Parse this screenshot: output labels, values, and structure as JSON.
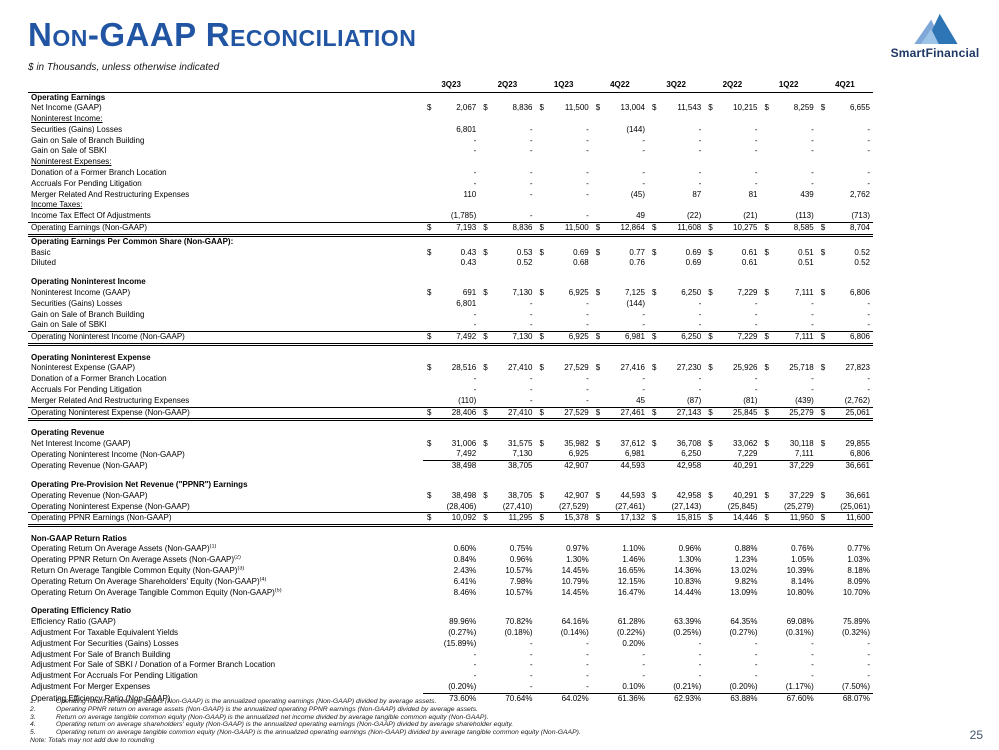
{
  "header": {
    "title": "Non-GAAP Reconciliation",
    "subtitle": "$ in Thousands, unless otherwise indicated",
    "logo_text": "SmartFinancial",
    "title_color": "#2155A3"
  },
  "table": {
    "columns": [
      "3Q23",
      "2Q23",
      "1Q23",
      "4Q22",
      "3Q22",
      "2Q22",
      "1Q22",
      "4Q21"
    ],
    "rows": [
      {
        "style": "section",
        "label": "Operating Earnings"
      },
      {
        "style": "data",
        "label": "Net Income (GAAP)",
        "dollar": true,
        "values": [
          "2,067",
          "8,836",
          "11,500",
          "13,004",
          "11,543",
          "10,215",
          "8,259",
          "6,655"
        ]
      },
      {
        "style": "subheader",
        "label": "Noninterest Income:"
      },
      {
        "style": "data",
        "label": "Securities (Gains) Losses",
        "values": [
          "6,801",
          "-",
          "-",
          "(144)",
          "-",
          "-",
          "-",
          "-"
        ]
      },
      {
        "style": "data",
        "label": "Gain on Sale of Branch Building",
        "values": [
          "-",
          "-",
          "-",
          "-",
          "-",
          "-",
          "-",
          "-"
        ]
      },
      {
        "style": "data",
        "label": "Gain on Sale of SBKI",
        "values": [
          "-",
          "-",
          "-",
          "-",
          "-",
          "-",
          "-",
          "-"
        ]
      },
      {
        "style": "subheader",
        "label": "Noninterest Expenses:"
      },
      {
        "style": "data",
        "label": "Donation of a Former Branch Location",
        "values": [
          "-",
          "-",
          "-",
          "-",
          "-",
          "-",
          "-",
          "-"
        ]
      },
      {
        "style": "data",
        "label": "Accruals For Pending Litigation",
        "values": [
          "-",
          "-",
          "-",
          "-",
          "-",
          "-",
          "-",
          "-"
        ]
      },
      {
        "style": "data",
        "label": "Merger Related And Restructuring Expenses",
        "values": [
          "110",
          "-",
          "-",
          "(45)",
          "87",
          "81",
          "439",
          "2,762"
        ]
      },
      {
        "style": "subheader",
        "label": "Income Taxes:"
      },
      {
        "style": "data",
        "label": "Income Tax Effect Of Adjustments",
        "values": [
          "(1,785)",
          "-",
          "-",
          "49",
          "(22)",
          "(21)",
          "(113)",
          "(713)"
        ]
      },
      {
        "style": "total",
        "label": "Operating Earnings (Non-GAAP)",
        "dollar": true,
        "values": [
          "7,193",
          "8,836",
          "11,500",
          "12,864",
          "11,608",
          "10,275",
          "8,585",
          "8,704"
        ]
      },
      {
        "style": "section",
        "label": "Operating Earnings Per Common Share (Non-GAAP):"
      },
      {
        "style": "data",
        "label": "Basic",
        "dollar": true,
        "values": [
          "0.43",
          "0.53",
          "0.69",
          "0.77",
          "0.69",
          "0.61",
          "0.51",
          "0.52"
        ]
      },
      {
        "style": "data",
        "label": "Diluted",
        "values": [
          "0.43",
          "0.52",
          "0.68",
          "0.76",
          "0.69",
          "0.61",
          "0.51",
          "0.52"
        ]
      },
      {
        "style": "spacer"
      },
      {
        "style": "section",
        "label": "Operating Noninterest Income"
      },
      {
        "style": "data",
        "label": "Noninterest Income (GAAP)",
        "dollar": true,
        "values": [
          "691",
          "7,130",
          "6,925",
          "7,125",
          "6,250",
          "7,229",
          "7,111",
          "6,806"
        ]
      },
      {
        "style": "data",
        "label": "Securities (Gains) Losses",
        "values": [
          "6,801",
          "-",
          "-",
          "(144)",
          "-",
          "-",
          "-",
          "-"
        ]
      },
      {
        "style": "data",
        "label": "Gain on Sale of Branch Building",
        "values": [
          "-",
          "-",
          "-",
          "-",
          "-",
          "-",
          "-",
          "-"
        ]
      },
      {
        "style": "data",
        "label": "Gain on Sale of SBKI",
        "values": [
          "-",
          "-",
          "-",
          "-",
          "-",
          "-",
          "-",
          "-"
        ]
      },
      {
        "style": "total",
        "label": "Operating Noninterest Income (Non-GAAP)",
        "dollar": true,
        "values": [
          "7,492",
          "7,130",
          "6,925",
          "6,981",
          "6,250",
          "7,229",
          "7,111",
          "6,806"
        ]
      },
      {
        "style": "spacer"
      },
      {
        "style": "section",
        "label": "Operating Noninterest Expense"
      },
      {
        "style": "data",
        "label": "Noninterest Expense (GAAP)",
        "dollar": true,
        "values": [
          "28,516",
          "27,410",
          "27,529",
          "27,416",
          "27,230",
          "25,926",
          "25,718",
          "27,823"
        ]
      },
      {
        "style": "data",
        "label": "Donation of a Former Branch Location",
        "values": [
          "-",
          "-",
          "-",
          "-",
          "-",
          "-",
          "-",
          "-"
        ]
      },
      {
        "style": "data",
        "label": "Accruals For Pending Litigation",
        "values": [
          "-",
          "-",
          "-",
          "-",
          "-",
          "-",
          "-",
          "-"
        ]
      },
      {
        "style": "data",
        "label": "Merger Related And Restructuring Expenses",
        "values": [
          "(110)",
          "-",
          "-",
          "45",
          "(87)",
          "(81)",
          "(439)",
          "(2,762)"
        ]
      },
      {
        "style": "total",
        "label": "Operating Noninterest Expense (Non-GAAP)",
        "dollar": true,
        "values": [
          "28,406",
          "27,410",
          "27,529",
          "27,461",
          "27,143",
          "25,845",
          "25,279",
          "25,061"
        ]
      },
      {
        "style": "spacer"
      },
      {
        "style": "section",
        "label": "Operating Revenue"
      },
      {
        "style": "data",
        "label": "Net Interest Income (GAAP)",
        "dollar": true,
        "values": [
          "31,006",
          "31,575",
          "35,982",
          "37,612",
          "36,708",
          "33,062",
          "30,118",
          "29,855"
        ]
      },
      {
        "style": "data",
        "underline": true,
        "label": "Operating Noninterest Income (Non-GAAP)",
        "values": [
          "7,492",
          "7,130",
          "6,925",
          "6,981",
          "6,250",
          "7,229",
          "7,111",
          "6,806"
        ]
      },
      {
        "style": "data",
        "label": "Operating Revenue (Non-GAAP)",
        "values": [
          "38,498",
          "38,705",
          "42,907",
          "44,593",
          "42,958",
          "40,291",
          "37,229",
          "36,661"
        ]
      },
      {
        "style": "spacer"
      },
      {
        "style": "section",
        "label": "Operating Pre-Provision Net Revenue (\"PPNR\") Earnings"
      },
      {
        "style": "data",
        "label": "Operating Revenue (Non-GAAP)",
        "dollar": true,
        "values": [
          "38,498",
          "38,705",
          "42,907",
          "44,593",
          "42,958",
          "40,291",
          "37,229",
          "36,661"
        ]
      },
      {
        "style": "data",
        "label": "Operating Noninterest Expense (Non-GAAP)",
        "values": [
          "(28,406)",
          "(27,410)",
          "(27,529)",
          "(27,461)",
          "(27,143)",
          "(25,845)",
          "(25,279)",
          "(25,061)"
        ]
      },
      {
        "style": "total",
        "label": "Operating PPNR Earnings (Non-GAAP)",
        "dollar": true,
        "values": [
          "10,092",
          "11,295",
          "15,378",
          "17,132",
          "15,815",
          "14,446",
          "11,950",
          "11,600"
        ]
      },
      {
        "style": "spacer"
      },
      {
        "style": "section",
        "label": "Non-GAAP Return Ratios"
      },
      {
        "style": "data",
        "label": "Operating Return On Average Assets (Non-GAAP)",
        "sup": "(1)",
        "values": [
          "0.60%",
          "0.75%",
          "0.97%",
          "1.10%",
          "0.96%",
          "0.88%",
          "0.76%",
          "0.77%"
        ]
      },
      {
        "style": "data",
        "label": "Operating PPNR Return On Average Assets (Non-GAAP)",
        "sup": "(2)",
        "values": [
          "0.84%",
          "0.96%",
          "1.30%",
          "1.46%",
          "1.30%",
          "1.23%",
          "1.05%",
          "1.03%"
        ]
      },
      {
        "style": "data",
        "label": "Return On Average Tangible Common Equity (Non-GAAP)",
        "sup": "(3)",
        "values": [
          "2.43%",
          "10.57%",
          "14.45%",
          "16.65%",
          "14.36%",
          "13.02%",
          "10.39%",
          "8.18%"
        ]
      },
      {
        "style": "data",
        "label": "Operating Return On Average Shareholders' Equity (Non-GAAP)",
        "sup": "(4)",
        "values": [
          "6.41%",
          "7.98%",
          "10.79%",
          "12.15%",
          "10.83%",
          "9.82%",
          "8.14%",
          "8.09%"
        ]
      },
      {
        "style": "data",
        "label": "Operating Return On Average Tangible Common Equity (Non-GAAP)",
        "sup": "(5)",
        "values": [
          "8.46%",
          "10.57%",
          "14.45%",
          "16.47%",
          "14.44%",
          "13.09%",
          "10.80%",
          "10.70%"
        ]
      },
      {
        "style": "spacer"
      },
      {
        "style": "section",
        "label": "Operating Efficiency Ratio"
      },
      {
        "style": "data",
        "label": "Efficiency Ratio (GAAP)",
        "values": [
          "89.96%",
          "70.82%",
          "64.16%",
          "61.28%",
          "63.39%",
          "64.35%",
          "69.08%",
          "75.89%"
        ]
      },
      {
        "style": "data",
        "label": "Adjustment For Taxable Equivalent Yields",
        "values": [
          "(0.27%)",
          "(0.18%)",
          "(0.14%)",
          "(0.22%)",
          "(0.25%)",
          "(0.27%)",
          "(0.31%)",
          "(0.32%)"
        ]
      },
      {
        "style": "data",
        "label": "Adjustment For Securities (Gains) Losses",
        "values": [
          "(15.89%)",
          "-",
          "-",
          "0.20%",
          "-",
          "-",
          "-",
          "-"
        ]
      },
      {
        "style": "data",
        "label": "Adjustment For Sale of Branch Building",
        "values": [
          "-",
          "-",
          "-",
          "-",
          "-",
          "-",
          "-",
          "-"
        ]
      },
      {
        "style": "data",
        "label": "Adjustment For Sale of SBKI / Donation of a Former Branch Location",
        "values": [
          "-",
          "-",
          "-",
          "-",
          "-",
          "-",
          "-",
          "-"
        ]
      },
      {
        "style": "data",
        "label": "Adjustment For Accruals For Pending Litigation",
        "values": [
          "-",
          "-",
          "-",
          "-",
          "-",
          "-",
          "-",
          "-"
        ]
      },
      {
        "style": "data",
        "underline": true,
        "label": "Adjustment For Merger Expenses",
        "values": [
          "(0.20%)",
          "-",
          "-",
          "0.10%",
          "(0.21%)",
          "(0.20%)",
          "(1.17%)",
          "(7.50%)"
        ]
      },
      {
        "style": "data",
        "label": "Operating Efficiency Ratio (Non-GAAP)",
        "values": [
          "73.60%",
          "70.64%",
          "64.02%",
          "61.36%",
          "62.93%",
          "63.88%",
          "67.60%",
          "68.07%"
        ]
      }
    ]
  },
  "footnotes": [
    {
      "num": "1.",
      "text": "Operating return on average assets (Non-GAAP) is the annualized operating earnings (Non-GAAP) divided by average assets."
    },
    {
      "num": "2.",
      "text": "Operating PPNR return on average assets (Non-GAAP) is the annualized operating PPNR earnings (Non-GAAP) divided by average assets."
    },
    {
      "num": "3.",
      "text": "Return on average tangible common equity (Non-GAAP) is the annualized net income divided by average tangible common equity (Non-GAAP)."
    },
    {
      "num": "4.",
      "text": "Operating return on average shareholders' equity (Non-GAAP) is the annualized operating earnings (Non-GAAP) divided by average shareholder equity."
    },
    {
      "num": "5.",
      "text": "Operating return on average tangible common equity (Non-GAAP) is the annualized operating earnings (Non-GAAP) divided by average tangible common equity (Non-GAAP)."
    }
  ],
  "footnote_note": "Note: Totals may not add due to rounding",
  "page_number": "25"
}
